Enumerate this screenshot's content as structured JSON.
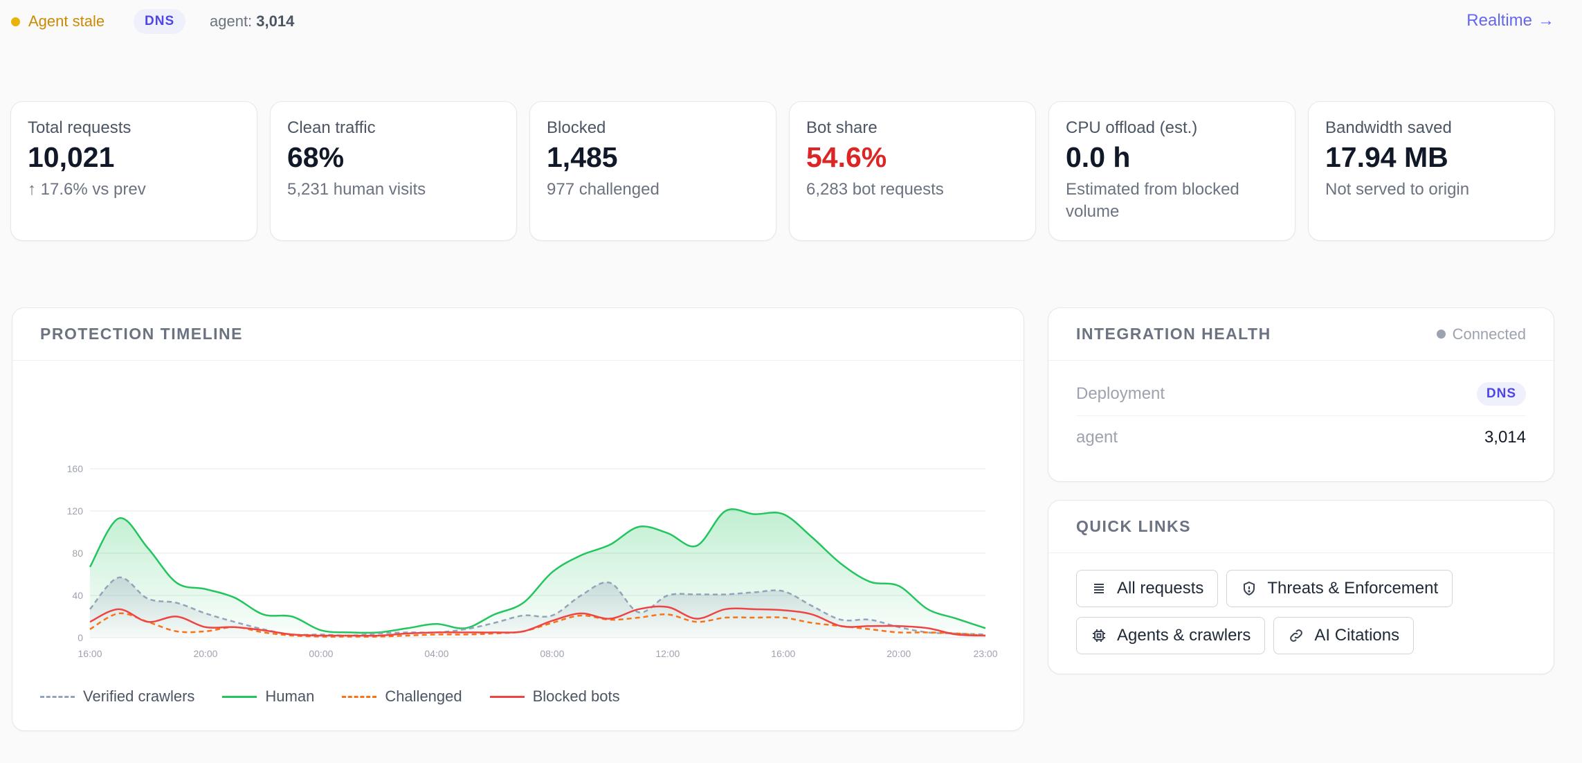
{
  "topbar": {
    "status_text": "Agent stale",
    "deployment_badge": "DNS",
    "agent_label": "agent:",
    "agent_value": "3,014",
    "realtime_label": "Realtime",
    "realtime_arrow": "→"
  },
  "stats": [
    {
      "label": "Total requests",
      "value": "10,021",
      "sub": "↑ 17.6% vs prev"
    },
    {
      "label": "Clean traffic",
      "value": "68%",
      "sub": "5,231 human visits"
    },
    {
      "label": "Blocked",
      "value": "1,485",
      "sub": "977 challenged"
    },
    {
      "label": "Bot share",
      "value": "54.6%",
      "sub": "6,283 bot requests"
    },
    {
      "label": "CPU offload (est.)",
      "value": "0.0 h",
      "sub": "Estimated from blocked volume"
    },
    {
      "label": "Bandwidth saved",
      "value": "17.94 MB",
      "sub": "Not served to origin"
    }
  ],
  "timeline": {
    "title": "PROTECTION TIMELINE"
  },
  "chart_data": {
    "type": "area",
    "x_ticks": [
      "16:00",
      "20:00",
      "00:00",
      "04:00",
      "08:00",
      "12:00",
      "16:00",
      "20:00",
      "23:00"
    ],
    "y_ticks": [
      "0",
      "40",
      "80",
      "120",
      "160"
    ],
    "ylim": [
      0,
      160
    ],
    "xlim": [
      0,
      31
    ],
    "x": [
      0,
      1,
      2,
      3,
      4,
      5,
      6,
      7,
      8,
      9,
      10,
      11,
      12,
      13,
      14,
      15,
      16,
      17,
      18,
      19,
      20,
      21,
      22,
      23,
      24,
      25,
      26,
      27,
      28,
      29,
      30,
      31
    ],
    "series": [
      {
        "name": "Verified crawlers",
        "color": "#94a3b8",
        "dash": true,
        "values": [
          27,
          57,
          37,
          33,
          23,
          15,
          8,
          3,
          3,
          2,
          4,
          5,
          5,
          8,
          14,
          21,
          21,
          40,
          52,
          24,
          40,
          41,
          41,
          43,
          44,
          30,
          17,
          17,
          10,
          5,
          4,
          3
        ]
      },
      {
        "name": "Human",
        "color": "#22c55e",
        "dash": false,
        "values": [
          67,
          113,
          85,
          52,
          46,
          38,
          22,
          20,
          7,
          5,
          5,
          9,
          13,
          9,
          22,
          33,
          62,
          78,
          88,
          105,
          99,
          87,
          120,
          117,
          117,
          95,
          70,
          53,
          49,
          27,
          18,
          9
        ]
      },
      {
        "name": "Challenged",
        "color": "#f97316",
        "dash": true,
        "values": [
          8,
          23,
          15,
          6,
          6,
          10,
          5,
          2,
          1,
          1,
          1,
          2,
          3,
          3,
          4,
          6,
          14,
          21,
          17,
          19,
          22,
          15,
          19,
          19,
          19,
          14,
          11,
          8,
          5,
          5,
          4,
          2
        ]
      },
      {
        "name": "Blocked bots",
        "color": "#ef4444",
        "dash": false,
        "values": [
          15,
          27,
          15,
          20,
          10,
          10,
          7,
          3,
          2,
          2,
          2,
          4,
          5,
          5,
          5,
          6,
          16,
          23,
          18,
          27,
          29,
          18,
          27,
          27,
          26,
          22,
          11,
          11,
          11,
          9,
          3,
          2
        ]
      }
    ]
  },
  "health": {
    "title": "INTEGRATION HEALTH",
    "status": "Connected",
    "rows": [
      {
        "key": "Deployment",
        "value": "DNS"
      },
      {
        "key": "agent",
        "value": "3,014"
      }
    ]
  },
  "quick_links": {
    "title": "QUICK LINKS",
    "items": [
      {
        "label": "All requests",
        "icon": "list-icon"
      },
      {
        "label": "Threats & Enforcement",
        "icon": "shield-icon"
      },
      {
        "label": "Agents & crawlers",
        "icon": "chip-icon"
      },
      {
        "label": "AI Citations",
        "icon": "link-icon"
      }
    ]
  }
}
